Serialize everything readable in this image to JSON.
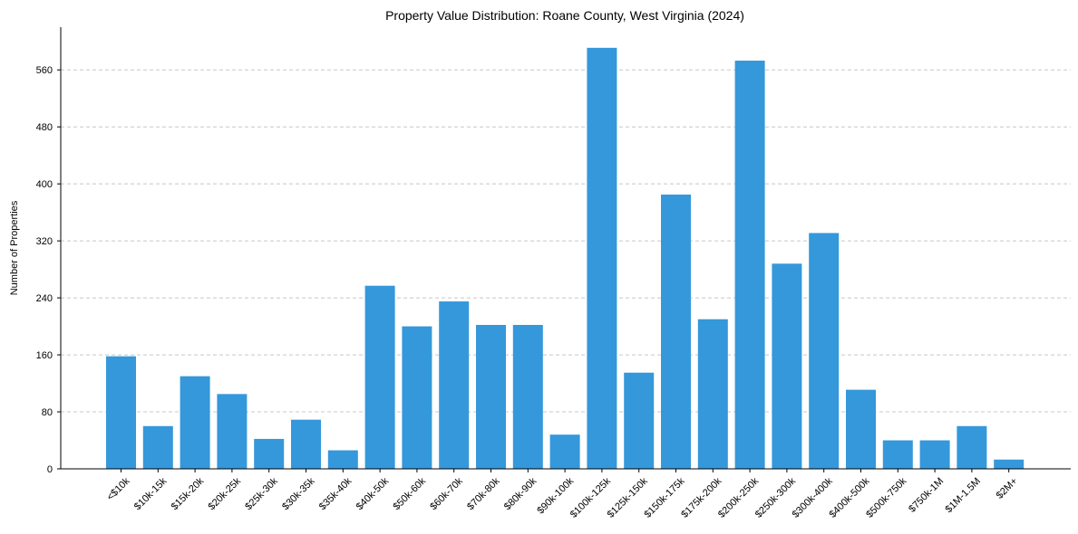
{
  "chart_data": {
    "type": "bar",
    "title": "Property Value Distribution: Roane County, West Virginia (2024)",
    "xlabel": "",
    "ylabel": "Number of Properties",
    "ylim": [
      0,
      620
    ],
    "yticks": [
      0,
      80,
      160,
      240,
      320,
      400,
      480,
      560
    ],
    "grid": true,
    "bar_color": "#3498db",
    "categories": [
      "<$10k",
      "$10k-15k",
      "$15k-20k",
      "$20k-25k",
      "$25k-30k",
      "$30k-35k",
      "$35k-40k",
      "$40k-50k",
      "$50k-60k",
      "$60k-70k",
      "$70k-80k",
      "$80k-90k",
      "$90k-100k",
      "$100k-125k",
      "$125k-150k",
      "$150k-175k",
      "$175k-200k",
      "$200k-250k",
      "$250k-300k",
      "$300k-400k",
      "$400k-500k",
      "$500k-750k",
      "$750k-1M",
      "$1M-1.5M",
      "$2M+"
    ],
    "values": [
      158,
      60,
      130,
      105,
      42,
      69,
      26,
      257,
      200,
      235,
      202,
      202,
      48,
      591,
      135,
      385,
      210,
      573,
      288,
      331,
      111,
      40,
      40,
      60,
      13
    ]
  }
}
